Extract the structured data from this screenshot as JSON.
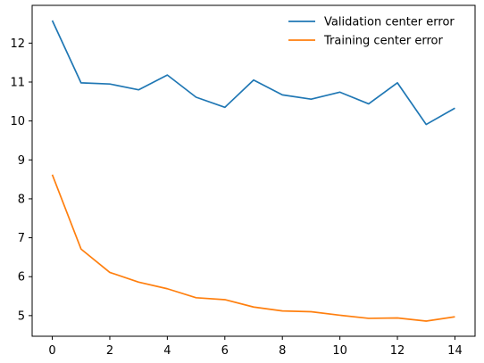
{
  "chart_data": {
    "type": "line",
    "x": [
      0,
      1,
      2,
      3,
      4,
      5,
      6,
      7,
      8,
      9,
      10,
      11,
      12,
      13,
      14
    ],
    "series": [
      {
        "name": "Validation center error",
        "color": "#1f77b4",
        "values": [
          12.58,
          10.98,
          10.95,
          10.8,
          11.18,
          10.61,
          10.35,
          11.05,
          10.67,
          10.56,
          10.74,
          10.44,
          10.98,
          9.91,
          10.33
        ]
      },
      {
        "name": "Training center error",
        "color": "#ff7f0e",
        "values": [
          8.62,
          6.71,
          6.11,
          5.86,
          5.69,
          5.46,
          5.41,
          5.22,
          5.12,
          5.1,
          5.01,
          4.93,
          4.94,
          4.86,
          4.97
        ]
      }
    ],
    "xticks": [
      "0",
      "2",
      "4",
      "6",
      "8",
      "10",
      "12",
      "14"
    ],
    "yticks": [
      "5",
      "6",
      "7",
      "8",
      "9",
      "10",
      "11",
      "12"
    ],
    "xlim": [
      -0.7,
      14.7
    ],
    "ylim": [
      4.47,
      12.97
    ],
    "legend": "top-right",
    "grid": false,
    "title": "",
    "xlabel": "",
    "ylabel": ""
  }
}
